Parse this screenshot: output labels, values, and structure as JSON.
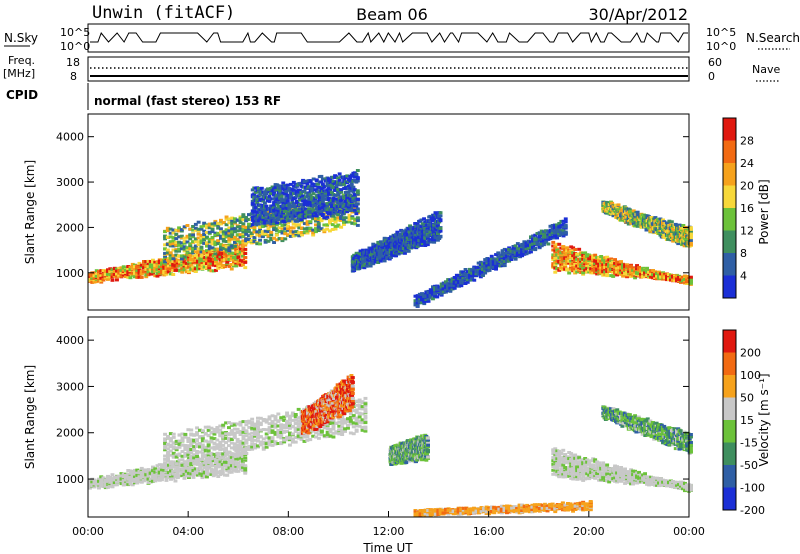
{
  "header": {
    "station": "Unwin (fitACF)",
    "beam": "Beam 06",
    "date": "30/Apr/2012"
  },
  "status_panels": {
    "nsky_label": "N.Sky",
    "nsearch_label": "N.Search",
    "freq_label": "Freq.",
    "freq_unit": "[MHz]",
    "cpid_label": "CPID",
    "nave_label": "Nave",
    "noise_ticks_left": [
      "10^5",
      "10^0"
    ],
    "noise_ticks_right": [
      "10^5",
      "10^0"
    ],
    "freq_ticks_left": [
      "18",
      "8"
    ],
    "nave_ticks_right": [
      "60",
      "0"
    ],
    "cpid_text": "normal (fast stereo) 153 RF"
  },
  "chart_data": [
    {
      "type": "heatmap",
      "name": "power",
      "ylabel": "Slant Range [km]",
      "xlim": [
        0,
        24
      ],
      "ylim": [
        180,
        4500
      ],
      "y_ticks": [
        "1000",
        "2000",
        "3000",
        "4000"
      ],
      "colorbar": {
        "label": "Power [dB]",
        "ticks": [
          "4",
          "8",
          "12",
          "16",
          "20",
          "24",
          "28"
        ],
        "colors": [
          "#1b2fd6",
          "#2f5fa5",
          "#3f8f5f",
          "#6cc23a",
          "#f7d83a",
          "#f6a21c",
          "#f26a12",
          "#e0180f"
        ]
      },
      "echo_regions": [
        {
          "t": [
            0,
            6.2
          ],
          "range_start": [
            860,
            1200
          ],
          "range_end": [
            1000,
            1700
          ],
          "level": "high"
        },
        {
          "t": [
            3,
            10.7
          ],
          "range_start": [
            1300,
            2100
          ],
          "range_end": [
            2000,
            2800
          ],
          "level": "medium"
        },
        {
          "t": [
            6.5,
            10.7
          ],
          "range_start": [
            2100,
            2400
          ],
          "range_end": [
            2900,
            3300
          ],
          "level": "low"
        },
        {
          "t": [
            10.5,
            14
          ],
          "range_start": [
            1100,
            1800
          ],
          "range_end": [
            1400,
            2400
          ],
          "level": "low"
        },
        {
          "t": [
            13,
            19
          ],
          "range_start": [
            300,
            1900
          ],
          "range_end": [
            500,
            2200
          ],
          "level": "low"
        },
        {
          "t": [
            18.5,
            24
          ],
          "range_start": [
            1700,
            800
          ],
          "range_end": [
            1100,
            900
          ],
          "level": "high"
        },
        {
          "t": [
            20.5,
            24
          ],
          "range_start": [
            2400,
            1600
          ],
          "range_end": [
            2600,
            2000
          ],
          "level": "medium"
        }
      ]
    },
    {
      "type": "heatmap",
      "name": "velocity",
      "ylabel": "Slant Range [km]",
      "xlabel": "Time UT",
      "xlim": [
        0,
        24
      ],
      "ylim": [
        180,
        4500
      ],
      "x_ticks": [
        "00:00",
        "04:00",
        "08:00",
        "12:00",
        "16:00",
        "20:00",
        "00:00"
      ],
      "y_ticks": [
        "1000",
        "2000",
        "3000",
        "4000"
      ],
      "colorbar": {
        "label": "Velocity [m s⁻¹]",
        "ticks": [
          "200",
          "100",
          "50",
          "15",
          "-15",
          "-50",
          "-100",
          "-200"
        ],
        "colors": [
          "#1b2fd6",
          "#2f5fa5",
          "#3f8f5f",
          "#6cc23a",
          "#c8c8c8",
          "#f6a21c",
          "#f26a12",
          "#e0180f"
        ]
      },
      "echo_regions": [
        {
          "t": [
            0,
            6.2
          ],
          "range_start": [
            860,
            1200
          ],
          "range_end": [
            1000,
            1700
          ],
          "level": "ground"
        },
        {
          "t": [
            3,
            11
          ],
          "range_start": [
            1300,
            2100
          ],
          "range_end": [
            2000,
            2800
          ],
          "level": "ground"
        },
        {
          "t": [
            8.5,
            10.5
          ],
          "range_start": [
            2000,
            2600
          ],
          "range_end": [
            2500,
            3300
          ],
          "level": "negative_high"
        },
        {
          "t": [
            12,
            13.5
          ],
          "range_start": [
            1400,
            1500
          ],
          "range_end": [
            1700,
            2000
          ],
          "level": "positive"
        },
        {
          "t": [
            13,
            20
          ],
          "range_start": [
            300,
            400
          ],
          "range_end": [
            300,
            500
          ],
          "level": "negative_low"
        },
        {
          "t": [
            18.5,
            24
          ],
          "range_start": [
            1700,
            800
          ],
          "range_end": [
            1100,
            900
          ],
          "level": "ground"
        },
        {
          "t": [
            20.5,
            24
          ],
          "range_start": [
            2400,
            1600
          ],
          "range_end": [
            2600,
            2000
          ],
          "level": "positive"
        }
      ]
    }
  ]
}
